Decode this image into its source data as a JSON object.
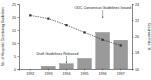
{
  "chart_data": {
    "type": "bar",
    "categories": [
      "1992",
      "1993",
      "1994",
      "1995",
      "1996",
      "1997"
    ],
    "series": [
      {
        "name": "No. of Hospitals Distributing Guidelines",
        "type": "bar",
        "color": "#9a9a9a",
        "values": [
          0,
          1,
          2,
          4,
          14,
          11
        ]
      },
      {
        "name": "Cesarean Rate, %",
        "type": "line",
        "color": "#333333",
        "marker": "square",
        "line_style": "dashed",
        "axis": "y2",
        "values": [
          22.6,
          22.2,
          21.4,
          20.5,
          19.6,
          18.9
        ]
      }
    ],
    "y_label": "No. of Hospitals Distributing Guidelines",
    "y2_label": "Cesarean Rate, %",
    "ylim": [
      0,
      25
    ],
    "yticks": [
      0,
      5,
      10,
      15,
      20,
      25
    ],
    "y2lim": [
      16,
      24
    ],
    "y2ticks": [
      16,
      18,
      20,
      22,
      24
    ],
    "annotations": [
      {
        "text": "Draft Guidelines Released",
        "x": "1994"
      },
      {
        "text": "ODC Consensus Guidelines Issued",
        "x": "1996"
      }
    ]
  }
}
